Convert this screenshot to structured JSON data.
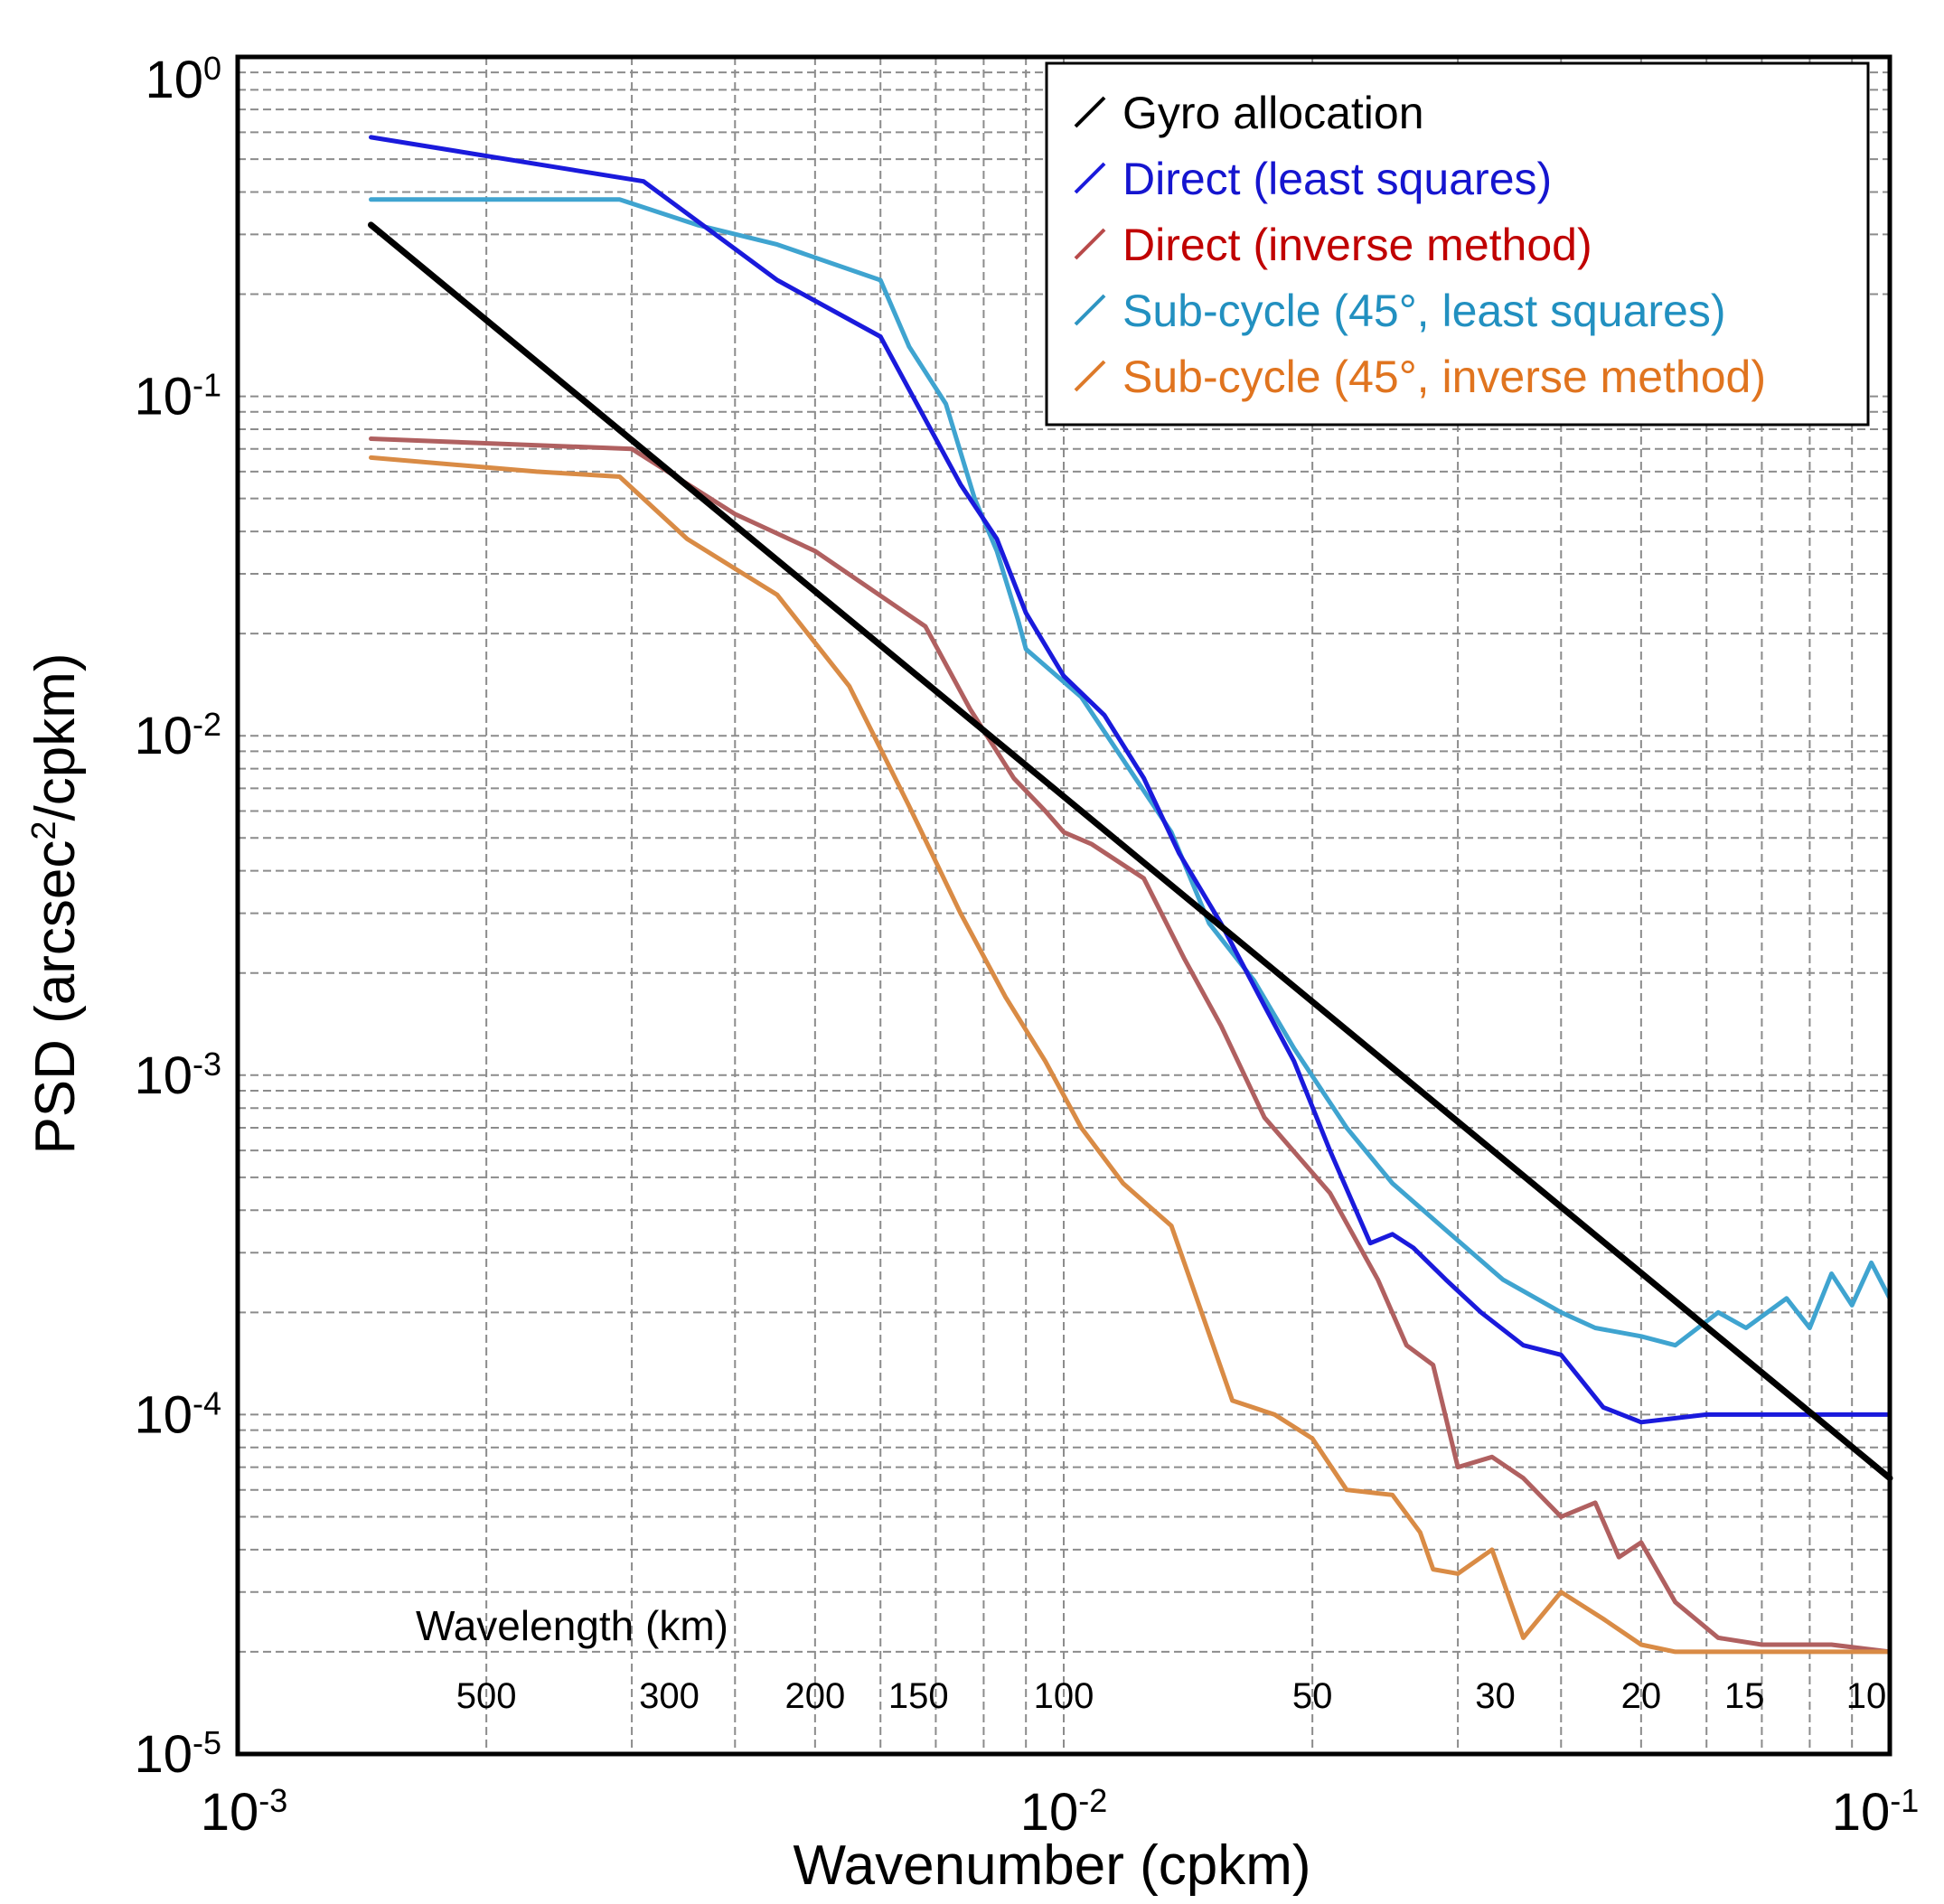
{
  "chart_data": {
    "type": "line",
    "xscale": "log",
    "yscale": "log",
    "xlim": [
      0.001,
      0.1
    ],
    "ylim": [
      1e-05,
      1
    ],
    "xlabel": "Wavenumber (cpkm)",
    "ylabel_prefix": "PSD (arcsec",
    "ylabel_sup": "2",
    "ylabel_suffix": "/cpkm)",
    "grid": true,
    "legend_position": "top-right",
    "x_ticks": [
      {
        "value": 0.001,
        "base": "10",
        "exp": "-3"
      },
      {
        "value": 0.01,
        "base": "10",
        "exp": "-2"
      },
      {
        "value": 0.1,
        "base": "10",
        "exp": "-1"
      }
    ],
    "y_ticks": [
      {
        "value": 1,
        "base": "10",
        "exp": "0"
      },
      {
        "value": 0.1,
        "base": "10",
        "exp": "-1"
      },
      {
        "value": 0.01,
        "base": "10",
        "exp": "-2"
      },
      {
        "value": 0.001,
        "base": "10",
        "exp": "-3"
      },
      {
        "value": 0.0001,
        "base": "10",
        "exp": "-4"
      },
      {
        "value": 1e-05,
        "base": "10",
        "exp": "-5"
      }
    ],
    "wavelength_axis": {
      "title": "Wavelength (km)",
      "labels": [
        "500",
        "300",
        "200",
        "150",
        "100",
        "50",
        "30",
        "20",
        "15",
        "10"
      ],
      "wavenumbers": [
        0.002,
        0.00333,
        0.005,
        0.00667,
        0.01,
        0.02,
        0.0333,
        0.05,
        0.0667,
        0.1
      ]
    },
    "series": [
      {
        "name": "Gyro allocation",
        "color": "#000000",
        "x": [
          0.00145,
          0.1
        ],
        "y": [
          0.32,
          6.5e-05
        ]
      },
      {
        "name": "Direct (least squares)",
        "color": "#1a1adc",
        "x": [
          0.00145,
          0.0031,
          0.0045,
          0.006,
          0.0075,
          0.0083,
          0.009,
          0.01,
          0.0112,
          0.0125,
          0.0138,
          0.0155,
          0.0175,
          0.019,
          0.021,
          0.0235,
          0.025,
          0.0265,
          0.029,
          0.032,
          0.036,
          0.04,
          0.045,
          0.05,
          0.06,
          0.07,
          0.08,
          0.09,
          0.1
        ],
        "y": [
          0.58,
          0.43,
          0.22,
          0.15,
          0.055,
          0.038,
          0.023,
          0.015,
          0.0115,
          0.0075,
          0.0045,
          0.0028,
          0.0016,
          0.0011,
          0.0006,
          0.00032,
          0.00034,
          0.00031,
          0.00025,
          0.0002,
          0.00016,
          0.00015,
          0.000105,
          9.5e-05,
          0.0001,
          0.0001,
          0.0001,
          0.0001,
          0.0001
        ]
      },
      {
        "name": "Direct (inverse method)",
        "color": "#b06060",
        "x": [
          0.00145,
          0.003,
          0.004,
          0.005,
          0.0068,
          0.0077,
          0.0087,
          0.0095,
          0.01,
          0.0108,
          0.0125,
          0.014,
          0.0155,
          0.0175,
          0.021,
          0.024,
          0.026,
          0.028,
          0.03,
          0.033,
          0.036,
          0.04,
          0.044,
          0.047,
          0.05,
          0.055,
          0.062,
          0.07,
          0.085,
          0.1
        ],
        "y": [
          0.075,
          0.07,
          0.045,
          0.035,
          0.021,
          0.012,
          0.0075,
          0.006,
          0.0052,
          0.0048,
          0.0038,
          0.0022,
          0.0014,
          0.00075,
          0.00045,
          0.00025,
          0.00016,
          0.00014,
          7e-05,
          7.5e-05,
          6.5e-05,
          5e-05,
          5.5e-05,
          3.8e-05,
          4.2e-05,
          2.8e-05,
          2.2e-05,
          2.1e-05,
          2.1e-05,
          2e-05
        ]
      },
      {
        "name": "Sub-cycle (45°, least squares)",
        "color": "#3fa4d0",
        "x": [
          0.00145,
          0.0029,
          0.0036,
          0.0045,
          0.006,
          0.0065,
          0.0072,
          0.0078,
          0.0083,
          0.0088,
          0.009,
          0.0105,
          0.0118,
          0.0135,
          0.015,
          0.017,
          0.019,
          0.022,
          0.025,
          0.029,
          0.034,
          0.04,
          0.044,
          0.05,
          0.055,
          0.062,
          0.067,
          0.075,
          0.08,
          0.085,
          0.09,
          0.095,
          0.1
        ],
        "y": [
          0.38,
          0.38,
          0.32,
          0.28,
          0.22,
          0.14,
          0.095,
          0.05,
          0.035,
          0.022,
          0.018,
          0.013,
          0.0085,
          0.0052,
          0.0028,
          0.0019,
          0.0012,
          0.0007,
          0.00048,
          0.00035,
          0.00025,
          0.0002,
          0.00018,
          0.00017,
          0.00016,
          0.0002,
          0.00018,
          0.00022,
          0.00018,
          0.00026,
          0.00021,
          0.00028,
          0.00022
        ]
      },
      {
        "name": "Sub-cycle (45°, inverse method)",
        "color": "#d98b45",
        "x": [
          0.00145,
          0.0023,
          0.0029,
          0.0035,
          0.0045,
          0.0055,
          0.0065,
          0.0075,
          0.0085,
          0.0095,
          0.0105,
          0.0118,
          0.0135,
          0.016,
          0.018,
          0.02,
          0.022,
          0.025,
          0.027,
          0.028,
          0.03,
          0.033,
          0.036,
          0.04,
          0.045,
          0.05,
          0.055,
          0.06,
          0.07,
          0.08,
          0.09,
          0.1
        ],
        "y": [
          0.066,
          0.06,
          0.058,
          0.038,
          0.026,
          0.014,
          0.0062,
          0.003,
          0.0017,
          0.0011,
          0.0007,
          0.00048,
          0.00036,
          0.00011,
          0.0001,
          8.5e-05,
          6e-05,
          5.8e-05,
          4.5e-05,
          3.5e-05,
          3.4e-05,
          4e-05,
          2.2e-05,
          3e-05,
          2.5e-05,
          2.1e-05,
          2e-05,
          2e-05,
          2e-05,
          2e-05,
          2e-05,
          2e-05
        ]
      }
    ]
  },
  "legend": {
    "items": [
      {
        "label": "Gyro allocation",
        "color": "#000000",
        "text_color": "#000000"
      },
      {
        "label": "Direct (least squares)",
        "color": "#1a1adc",
        "text_color": "#1515cf"
      },
      {
        "label": "Direct (inverse method)",
        "color": "#b84a4a",
        "text_color": "#c00000"
      },
      {
        "label": "Sub-cycle (45°, least squares)",
        "color": "#2e95c2",
        "text_color": "#2290c0"
      },
      {
        "label": "Sub-cycle (45°, inverse method)",
        "color": "#dd7a2a",
        "text_color": "#e0741f"
      }
    ]
  }
}
